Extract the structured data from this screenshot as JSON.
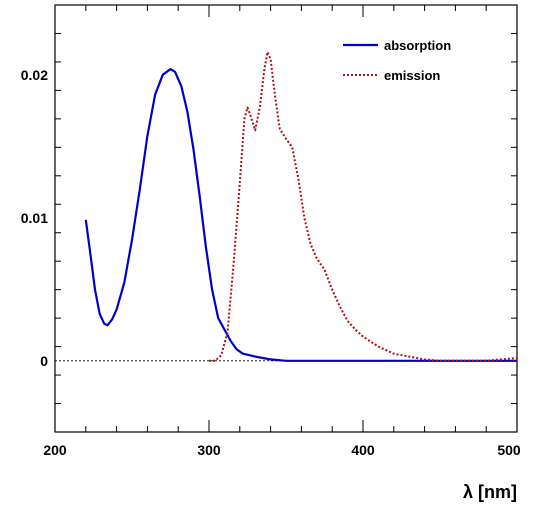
{
  "chart_data": {
    "type": "line",
    "title": "",
    "xlabel": "λ [nm]",
    "ylabel": "",
    "xlim": [
      200,
      500
    ],
    "ylim": [
      -0.005,
      0.025
    ],
    "x_ticks": [
      200,
      300,
      400,
      500
    ],
    "x_tick_labels": [
      "200",
      "300",
      "400",
      "500"
    ],
    "y_ticks": [
      0,
      0.01,
      0.02
    ],
    "y_tick_labels": [
      "0",
      "0.01",
      "0.02"
    ],
    "grid": false,
    "legend_position": "top-right",
    "reference_line": {
      "y": 0,
      "style": "dashed"
    },
    "series": [
      {
        "name": "absorption",
        "color": "#0000cc",
        "style": "solid",
        "points": [
          [
            220,
            0.0099
          ],
          [
            223,
            0.0075
          ],
          [
            226,
            0.005
          ],
          [
            229,
            0.0033
          ],
          [
            232,
            0.0026
          ],
          [
            234,
            0.0025
          ],
          [
            237,
            0.0029
          ],
          [
            240,
            0.0036
          ],
          [
            245,
            0.0055
          ],
          [
            250,
            0.0085
          ],
          [
            255,
            0.012
          ],
          [
            260,
            0.0158
          ],
          [
            265,
            0.0187
          ],
          [
            270,
            0.0201
          ],
          [
            275,
            0.0205
          ],
          [
            278,
            0.0203
          ],
          [
            282,
            0.0193
          ],
          [
            286,
            0.0175
          ],
          [
            290,
            0.0148
          ],
          [
            294,
            0.0115
          ],
          [
            298,
            0.008
          ],
          [
            302,
            0.005
          ],
          [
            306,
            0.003
          ],
          [
            310,
            0.0022
          ],
          [
            314,
            0.0014
          ],
          [
            318,
            0.0008
          ],
          [
            322,
            0.0005
          ],
          [
            326,
            0.0004
          ],
          [
            330,
            0.0003
          ],
          [
            335,
            0.0002
          ],
          [
            340,
            0.0001
          ],
          [
            350,
            0.0
          ],
          [
            400,
            0.0
          ],
          [
            450,
            0.0
          ],
          [
            500,
            0.0
          ]
        ]
      },
      {
        "name": "emission",
        "color": "#aa1111",
        "style": "dotted",
        "points": [
          [
            300,
            0.0
          ],
          [
            304,
            0.0
          ],
          [
            308,
            0.0004
          ],
          [
            312,
            0.002
          ],
          [
            316,
            0.0068
          ],
          [
            320,
            0.0125
          ],
          [
            323,
            0.017
          ],
          [
            325,
            0.0178
          ],
          [
            327,
            0.0172
          ],
          [
            330,
            0.0162
          ],
          [
            333,
            0.0178
          ],
          [
            336,
            0.0205
          ],
          [
            338,
            0.0217
          ],
          [
            340,
            0.0212
          ],
          [
            343,
            0.0185
          ],
          [
            346,
            0.0163
          ],
          [
            350,
            0.0156
          ],
          [
            354,
            0.015
          ],
          [
            358,
            0.0128
          ],
          [
            362,
            0.01
          ],
          [
            366,
            0.0082
          ],
          [
            370,
            0.0072
          ],
          [
            375,
            0.0064
          ],
          [
            380,
            0.005
          ],
          [
            385,
            0.0038
          ],
          [
            390,
            0.0028
          ],
          [
            395,
            0.0022
          ],
          [
            400,
            0.0017
          ],
          [
            410,
            0.001
          ],
          [
            420,
            0.0005
          ],
          [
            430,
            0.0003
          ],
          [
            440,
            0.0001
          ],
          [
            450,
            0.0
          ],
          [
            480,
            0.0
          ],
          [
            500,
            0.0002
          ]
        ]
      }
    ]
  }
}
